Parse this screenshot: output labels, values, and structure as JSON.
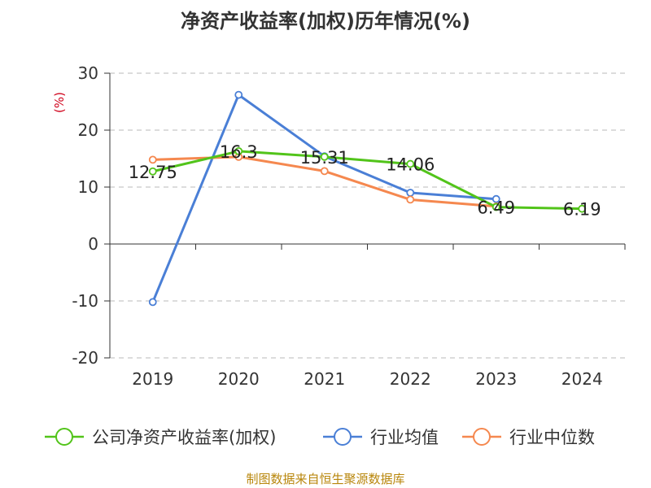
{
  "chart_data": {
    "type": "line",
    "title": "净资产收益率(加权)历年情况(%)",
    "ylabel": "(%)",
    "categories": [
      "2019",
      "2020",
      "2021",
      "2022",
      "2023",
      "2024"
    ],
    "ylim": [
      -20,
      30
    ],
    "yticks": [
      30,
      20,
      10,
      0,
      -10,
      -20
    ],
    "grid": true,
    "legend_position": "bottom",
    "series": [
      {
        "name": "公司净资产收益率(加权)",
        "color": "#52c41a",
        "values": [
          12.75,
          16.3,
          15.31,
          14.06,
          6.49,
          6.19
        ],
        "labels": [
          "12.75",
          "16.3",
          "15.31",
          "14.06",
          "6.49",
          "6.19"
        ]
      },
      {
        "name": "行业均值",
        "color": "#4a7fd6",
        "values": [
          -10.2,
          26.2,
          15.4,
          9.0,
          7.9,
          null
        ]
      },
      {
        "name": "行业中位数",
        "color": "#f5884f",
        "values": [
          14.8,
          15.3,
          12.8,
          7.8,
          6.6,
          null
        ]
      }
    ]
  },
  "source_text": "制图数据来自恒生聚源数据库"
}
